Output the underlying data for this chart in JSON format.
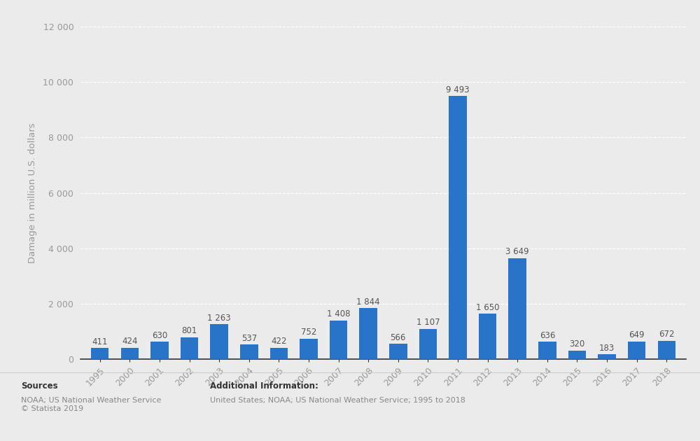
{
  "categories": [
    "1995",
    "2000",
    "2001",
    "2002",
    "2003",
    "2004",
    "2005",
    "2006",
    "2007",
    "2008",
    "2009",
    "2010",
    "2011",
    "2012",
    "2013",
    "2014",
    "2015",
    "2016",
    "2017",
    "2018"
  ],
  "values": [
    411,
    424,
    630,
    801,
    1263,
    537,
    422,
    752,
    1408,
    1844,
    566,
    1107,
    9493,
    1650,
    3649,
    636,
    320,
    183,
    649,
    672
  ],
  "bar_color": "#2874C8",
  "ylabel": "Damage in million U.S. dollars",
  "ylim": [
    0,
    12000
  ],
  "yticks": [
    0,
    2000,
    4000,
    6000,
    8000,
    10000,
    12000
  ],
  "ytick_labels": [
    "0",
    "2 000",
    "4 000",
    "6 000",
    "8 000",
    "10 000",
    "12 000"
  ],
  "background_color": "#ebebeb",
  "plot_bg_color": "#ebebeb",
  "grid_color": "#ffffff",
  "tick_color": "#999999",
  "spine_color": "#333333",
  "label_fontsize": 9.5,
  "value_fontsize": 8.5,
  "tick_fontsize": 9,
  "footer_sources_title": "Sources",
  "footer_sources_body": "NOAA; US National Weather Service\n© Statista 2019",
  "footer_info_title": "Additional Information:",
  "footer_info_body": "United States; NOAA; US National Weather Service; 1995 to 2018"
}
